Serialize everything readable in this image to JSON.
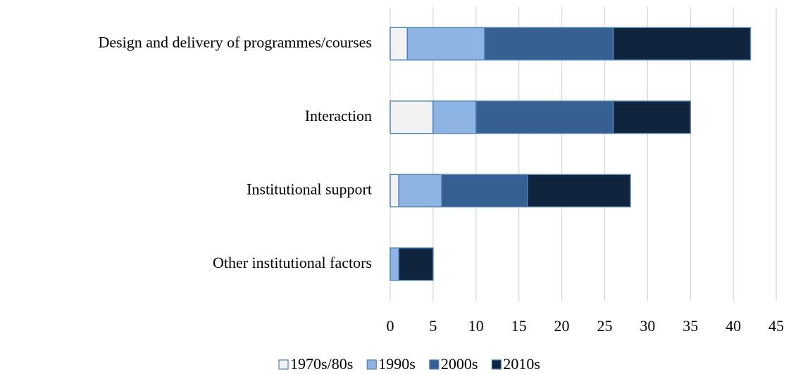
{
  "chart_data": {
    "type": "stacked_barh",
    "categories": [
      "Design and delivery of programmes/courses",
      "Interaction",
      "Institutional support",
      "Other institutional factors"
    ],
    "series": [
      {
        "name": "1970s/80s",
        "color": "#f2f2f2",
        "values": [
          2,
          5,
          1,
          0
        ]
      },
      {
        "name": "1990s",
        "color": "#8db4e2",
        "values": [
          9,
          5,
          5,
          1
        ]
      },
      {
        "name": "2000s",
        "color": "#366092",
        "values": [
          15,
          16,
          10,
          0
        ]
      },
      {
        "name": "2010s",
        "color": "#10243e",
        "values": [
          16,
          9,
          12,
          4
        ]
      }
    ],
    "xlim": [
      0,
      45
    ],
    "xticks": [
      0,
      5,
      10,
      15,
      20,
      25,
      30,
      35,
      40,
      45
    ],
    "grid": true,
    "legend": "bottom"
  }
}
